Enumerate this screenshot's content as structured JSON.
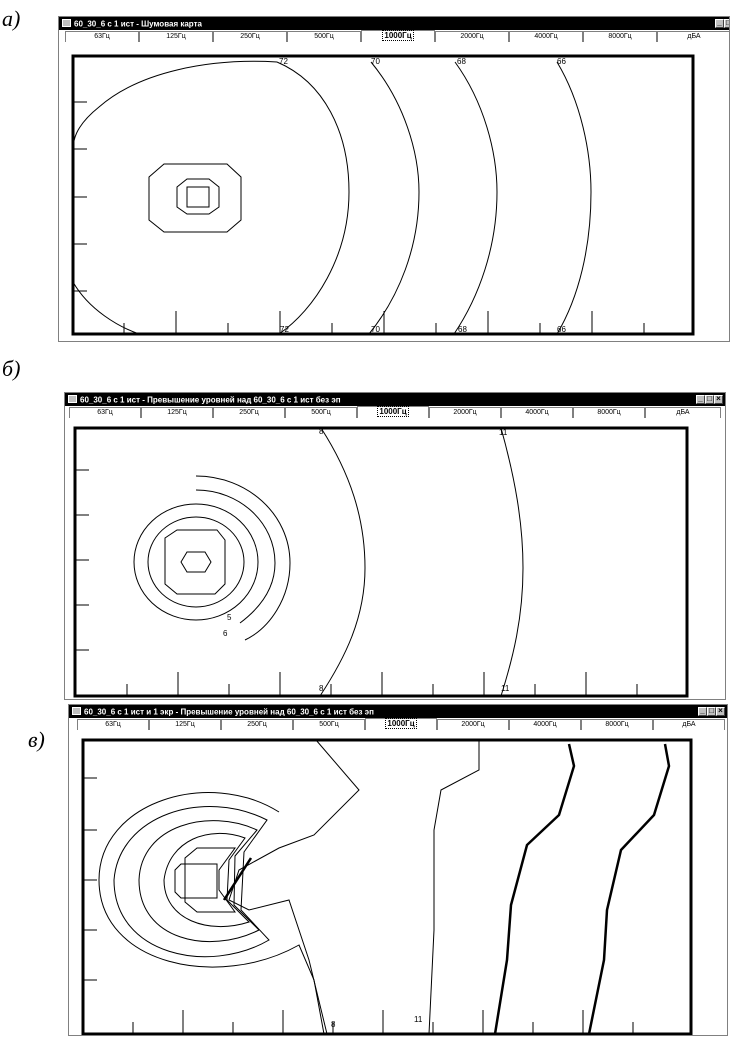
{
  "panels": [
    {
      "label": "а)",
      "title": "60_30_6 с 1 ист - Шумовая карта",
      "tabs": [
        "63Гц",
        "125Гц",
        "250Гц",
        "500Гц",
        "1000Гц",
        "2000Гц",
        "4000Гц",
        "8000Гц",
        "дБА"
      ],
      "active_tab": "1000Гц",
      "contour_labels": [
        "72",
        "70",
        "68",
        "66",
        "72",
        "70",
        "68",
        "66"
      ]
    },
    {
      "label": "б)",
      "title": "60_30_6 с 1 ист - Превышение уровней над 60_30_6 с 1 ист без эп",
      "tabs": [
        "63Гц",
        "125Гц",
        "250Гц",
        "500Гц",
        "1000Гц",
        "2000Гц",
        "4000Гц",
        "8000Гц",
        "дБА"
      ],
      "active_tab": "1000Гц",
      "contour_labels": [
        "8",
        "11",
        "5",
        "6",
        "8",
        "11"
      ]
    },
    {
      "label": "в)",
      "title": "60_30_6 с 1 ист и 1 экр - Превышение уровней над 60_30_6 с 1 ист без эп",
      "tabs": [
        "63Гц",
        "125Гц",
        "250Гц",
        "500Гц",
        "1000Гц",
        "2000Гц",
        "4000Гц",
        "8000Гц",
        "дБА"
      ],
      "active_tab": "1000Гц",
      "contour_labels": [
        "8",
        "11"
      ]
    }
  ],
  "window_buttons": {
    "minimize": "_",
    "maximize": "□",
    "close": "×"
  },
  "icons": [
    "app-icon",
    "minimize-icon",
    "maximize-icon",
    "close-icon"
  ]
}
